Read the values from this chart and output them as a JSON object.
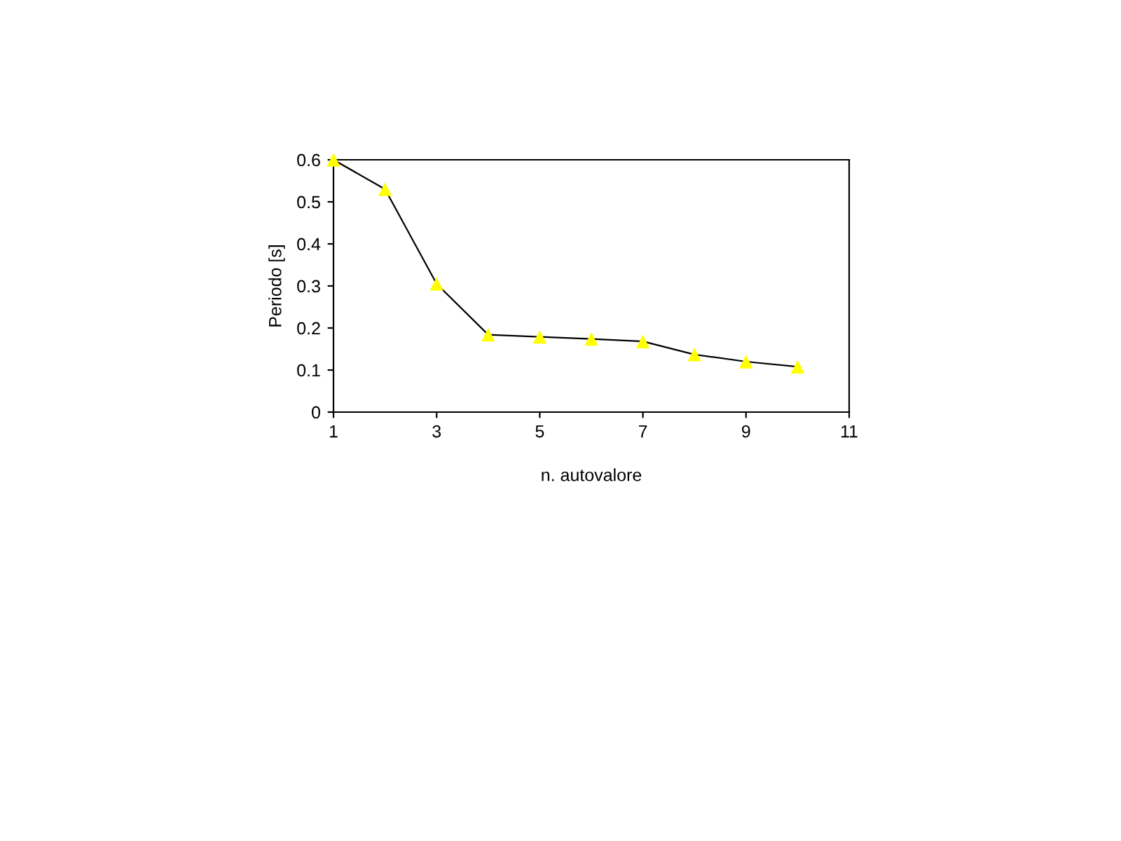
{
  "chart_data": {
    "type": "line",
    "xlabel": "n. autovalore",
    "ylabel": "Periodo [s]",
    "x": [
      1,
      2,
      3,
      4,
      5,
      6,
      7,
      8,
      9,
      10
    ],
    "series": [
      {
        "color": "#000000",
        "colors": [
          "#ffff00",
          "#ffff00",
          "#ffff00",
          "#ffff00",
          "#ffff00",
          "#ffff00",
          "#ffff00",
          "#ffff00",
          "#ffff00",
          "#ffff00"
        ],
        "values": [
          0.6,
          0.53,
          0.305,
          0.184,
          0.179,
          0.174,
          0.168,
          0.137,
          0.12,
          0.108
        ]
      }
    ],
    "xlim": [
      1,
      11
    ],
    "xticks": [
      1,
      3,
      5,
      7,
      9,
      11
    ],
    "ylim": [
      0,
      0.6
    ],
    "yticks": [
      0,
      0.1,
      0.2,
      0.3,
      0.4,
      0.5,
      0.6
    ],
    "marker": "triangle",
    "line_style": "solid",
    "grid": false,
    "legend": false
  }
}
